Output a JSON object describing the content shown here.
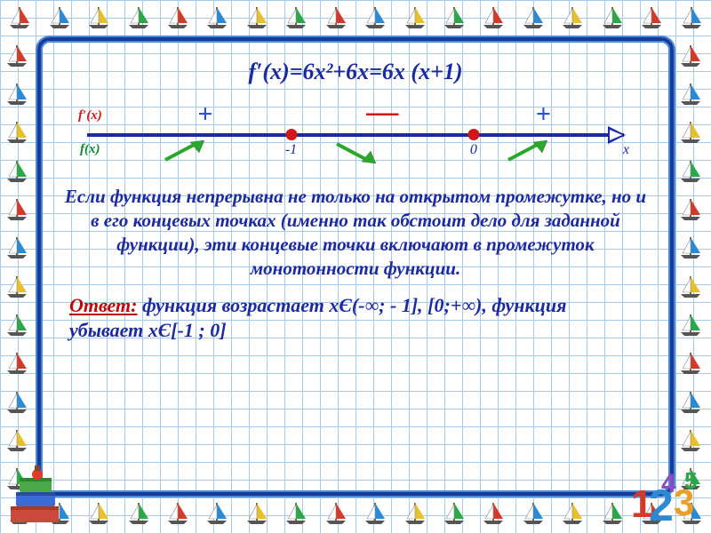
{
  "formula": "f′(x)=6x²+6x=6x (x+1)",
  "numberline": {
    "fprime_label": "f′(x)",
    "f_label": "f(x)",
    "x_label": "x",
    "points": [
      {
        "pos_pct": 38,
        "label": "-1"
      },
      {
        "pos_pct": 72,
        "label": "0"
      }
    ],
    "signs": [
      {
        "pos_pct": 22,
        "symbol": "+",
        "cls": "plus"
      },
      {
        "pos_pct": 55,
        "symbol": "—",
        "cls": "minus"
      },
      {
        "pos_pct": 85,
        "symbol": "+",
        "cls": "plus"
      }
    ],
    "trends": [
      {
        "pos_pct": 18,
        "dir": "up"
      },
      {
        "pos_pct": 50,
        "dir": "down"
      },
      {
        "pos_pct": 82,
        "dir": "up"
      }
    ],
    "colors": {
      "axis": "#1b2aa0",
      "crit_point": "#d01818",
      "plus": "#2a4fd0",
      "minus": "#d01818",
      "trend_up": "#2aa82a",
      "trend_down": "#2aa82a"
    }
  },
  "paragraph": "Если функция непрерывна не только на открытом промежутке, но и в его концевых точках (именно так обстоит дело для заданной функции), эти концевые точки включают в промежуток монотонности функции.",
  "answer": {
    "label": "Ответ:",
    "text": " функция возрастает xЄ(-∞; - 1], [0;+∞), функция убывает xЄ[-1 ; 0]"
  },
  "style": {
    "text_color": "#1b2aa0",
    "answer_label_color": "#c00808",
    "grid_color": "#a8c8e8",
    "frame_color": "#1a3a9a",
    "title_fontsize": 26,
    "paragraph_fontsize": 21,
    "answer_fontsize": 22
  },
  "border_sails_per_side": {
    "h": 18,
    "v": 12
  },
  "sail_colors": [
    "#d43a2a",
    "#2a8ad4",
    "#e8c02a",
    "#2aa84a"
  ]
}
